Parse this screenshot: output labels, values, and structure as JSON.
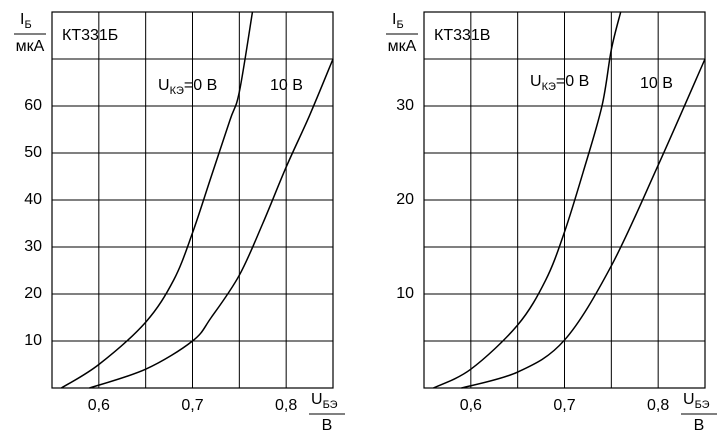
{
  "chart_data": [
    {
      "type": "line",
      "title": "КТ331Б",
      "ylabel": {
        "symbol": "I",
        "sub": "Б",
        "unit": "мкА"
      },
      "xlabel": {
        "symbol": "U",
        "sub": "БЭ",
        "unit": "В"
      },
      "xlim": [
        0.55,
        0.85
      ],
      "xticks": [
        {
          "value": 0.6,
          "label": "0,6"
        },
        {
          "value": 0.7,
          "label": "0,7"
        },
        {
          "value": 0.8,
          "label": "0,8"
        }
      ],
      "xminor": [
        0.65,
        0.75
      ],
      "ylim": [
        0,
        80
      ],
      "yticks": [
        10,
        20,
        30,
        40,
        50,
        60
      ],
      "yminor": [
        70
      ],
      "grid": true,
      "series": [
        {
          "name": {
            "symbol": "U",
            "sub": "КЭ",
            "rest": "=0 В"
          },
          "color": "#000000",
          "x": [
            0.56,
            0.6,
            0.65,
            0.68,
            0.7,
            0.72,
            0.74,
            0.75,
            0.764
          ],
          "values": [
            0,
            5,
            14,
            23,
            33,
            45,
            57,
            63,
            80
          ]
        },
        {
          "name": {
            "rest": "10 В"
          },
          "color": "#000000",
          "x": [
            0.59,
            0.65,
            0.7,
            0.72,
            0.75,
            0.775,
            0.8,
            0.825,
            0.85
          ],
          "values": [
            0,
            4,
            10,
            15,
            24,
            35,
            47,
            58,
            70
          ]
        }
      ]
    },
    {
      "type": "line",
      "title": "КТ331В",
      "ylabel": {
        "symbol": "I",
        "sub": "Б",
        "unit": "мкА"
      },
      "xlabel": {
        "symbol": "U",
        "sub": "БЭ",
        "unit": "В"
      },
      "xlim": [
        0.55,
        0.85
      ],
      "xticks": [
        {
          "value": 0.6,
          "label": "0,6"
        },
        {
          "value": 0.7,
          "label": "0,7"
        },
        {
          "value": 0.8,
          "label": "0,8"
        }
      ],
      "xminor": [
        0.65,
        0.75
      ],
      "ylim": [
        0,
        40
      ],
      "yticks": [
        10,
        20,
        30
      ],
      "yminor": [
        5,
        15,
        25,
        35
      ],
      "grid": true,
      "series": [
        {
          "name": {
            "symbol": "U",
            "sub": "КЭ",
            "rest": "=0 В"
          },
          "color": "#000000",
          "x": [
            0.56,
            0.6,
            0.65,
            0.68,
            0.7,
            0.72,
            0.74,
            0.75,
            0.76
          ],
          "values": [
            0,
            2,
            6.7,
            11.5,
            16.6,
            23,
            30,
            36,
            40
          ]
        },
        {
          "name": {
            "rest": "10 В"
          },
          "color": "#000000",
          "x": [
            0.59,
            0.65,
            0.7,
            0.75,
            0.8,
            0.85
          ],
          "values": [
            0,
            1.7,
            5.1,
            13,
            23.7,
            35
          ]
        }
      ]
    }
  ]
}
